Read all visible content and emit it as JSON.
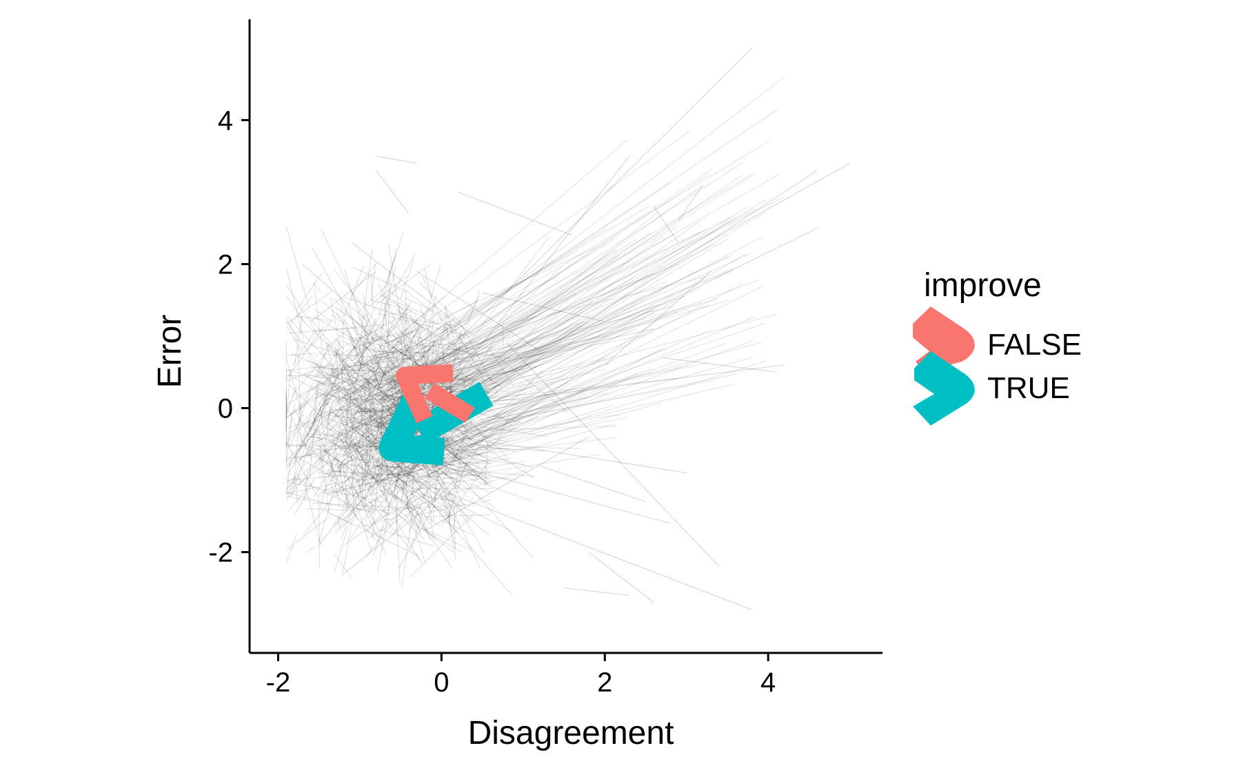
{
  "chart_data": {
    "type": "line",
    "title": "",
    "xlabel": "Disagreement",
    "ylabel": "Error",
    "xlim": [
      -2.35,
      5.4
    ],
    "ylim": [
      -3.4,
      5.4
    ],
    "xticks": [
      -2,
      0,
      2,
      4
    ],
    "yticks": [
      -2,
      0,
      2,
      4
    ],
    "xtick_labels": [
      "-2",
      "0",
      "2",
      "4"
    ],
    "ytick_labels": [
      "-2",
      "0",
      "2",
      "4"
    ],
    "grid": false,
    "legend": {
      "title": "improve",
      "placement": "right",
      "entries": [
        {
          "label": "FALSE",
          "color": "#F8766D"
        },
        {
          "label": "TRUE",
          "color": "#00BFC4"
        }
      ]
    },
    "series": [
      {
        "name": "FALSE",
        "color": "#F8766D",
        "description": "mean trajectory arrow",
        "from": {
          "x": 0.35,
          "y": -0.1
        },
        "to": {
          "x": -0.45,
          "y": 0.45
        }
      },
      {
        "name": "TRUE",
        "color": "#00BFC4",
        "description": "mean trajectory arrow",
        "from": {
          "x": 0.55,
          "y": 0.2
        },
        "to": {
          "x": -0.6,
          "y": -0.55
        }
      }
    ],
    "background_trajectories": {
      "color": "#000000",
      "description": "individual thin grey trajectories",
      "segments": [
        [
          -1.7,
          2.0,
          -0.9,
          1.2
        ],
        [
          -1.6,
          0.6,
          -0.6,
          -0.4
        ],
        [
          -1.5,
          -1.9,
          -0.8,
          -0.9
        ],
        [
          -1.3,
          1.4,
          0.1,
          0.3
        ],
        [
          -0.8,
          3.5,
          -0.3,
          3.4
        ],
        [
          -0.8,
          3.3,
          -0.4,
          2.7
        ],
        [
          0.2,
          3.0,
          1.6,
          2.4
        ],
        [
          -1.2,
          -2.3,
          -0.2,
          -1.4
        ],
        [
          -1.1,
          2.3,
          0.4,
          1.0
        ],
        [
          -0.9,
          -0.3,
          3.8,
          5.0
        ],
        [
          -0.7,
          -0.2,
          5.0,
          3.4
        ],
        [
          -0.5,
          -0.5,
          4.6,
          3.3
        ],
        [
          -0.6,
          -0.7,
          2.3,
          3.5
        ],
        [
          -0.4,
          -0.3,
          4.6,
          2.5
        ],
        [
          0.0,
          0.0,
          4.2,
          0.6
        ],
        [
          2.6,
          2.8,
          2.9,
          2.3
        ],
        [
          2.9,
          2.6,
          3.2,
          3.1
        ],
        [
          -0.8,
          -0.8,
          3.8,
          -2.8
        ],
        [
          -0.5,
          -0.6,
          2.8,
          -1.6
        ],
        [
          0.2,
          -0.4,
          3.0,
          -0.9
        ],
        [
          0.8,
          0.9,
          3.4,
          -2.2
        ],
        [
          1.5,
          -2.5,
          2.3,
          -2.6
        ],
        [
          1.8,
          -2.0,
          2.6,
          -2.7
        ],
        [
          -1.8,
          -0.7,
          -0.7,
          -0.4
        ],
        [
          -1.8,
          -0.7,
          -1.1,
          0.8
        ],
        [
          -1.1,
          0.9,
          -0.5,
          -0.1
        ],
        [
          -1.4,
          -1.2,
          0.6,
          -0.6
        ],
        [
          1.0,
          0.7,
          2.6,
          1.1
        ],
        [
          -0.9,
          -1.1,
          1.3,
          0.2
        ],
        [
          -0.3,
          1.9,
          1.2,
          0.8
        ],
        [
          0.5,
          1.6,
          2.0,
          1.2
        ],
        [
          -0.2,
          -1.7,
          1.8,
          -0.4
        ],
        [
          1.2,
          -0.8,
          2.5,
          -1.3
        ],
        [
          -1.6,
          1.2,
          -0.8,
          1.9
        ],
        [
          2.0,
          0.6,
          3.3,
          1.9
        ],
        [
          2.7,
          0.7,
          4.1,
          0.5
        ]
      ]
    }
  }
}
